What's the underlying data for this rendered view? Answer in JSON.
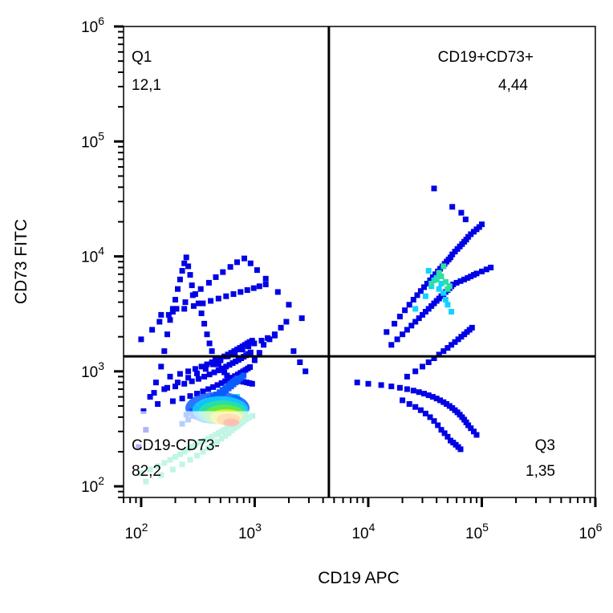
{
  "chart_data": {
    "type": "scatter",
    "xlabel": "CD19 APC",
    "ylabel": "CD73 FITC",
    "x_scale": "log",
    "y_scale": "log",
    "xlim": [
      70,
      1000000
    ],
    "ylim": [
      80,
      1000000
    ],
    "x_ticks": [
      {
        "value": 100,
        "base": "10",
        "exp": "2"
      },
      {
        "value": 1000,
        "base": "10",
        "exp": "3"
      },
      {
        "value": 10000,
        "base": "10",
        "exp": "4"
      },
      {
        "value": 100000,
        "base": "10",
        "exp": "5"
      },
      {
        "value": 1000000,
        "base": "10",
        "exp": "6"
      }
    ],
    "y_ticks": [
      {
        "value": 100,
        "base": "10",
        "exp": "2"
      },
      {
        "value": 1000,
        "base": "10",
        "exp": "3"
      },
      {
        "value": 10000,
        "base": "10",
        "exp": "4"
      },
      {
        "value": 100000,
        "base": "10",
        "exp": "5"
      },
      {
        "value": 1000000,
        "base": "10",
        "exp": "6"
      }
    ],
    "quadrant_gate": {
      "x": 4500,
      "y": 1350
    },
    "quadrants": [
      {
        "name": "Q1",
        "value": "12,1",
        "position": "top-left"
      },
      {
        "name": "CD19+CD73+",
        "value": "4,44",
        "position": "top-right"
      },
      {
        "name": "CD19-CD73-",
        "value": "82,2",
        "position": "bottom-left"
      },
      {
        "name": "Q3",
        "value": "1,35",
        "position": "bottom-right"
      }
    ],
    "density_colors": [
      "#0000e6",
      "#0a5cff",
      "#12d2ff",
      "#2ee0a0",
      "#66ee33",
      "#f4e81a",
      "#ff8800",
      "#ff1a00"
    ],
    "populations": [
      {
        "x": [
          95,
          110,
          105,
          120,
          135,
          150,
          160,
          170,
          180,
          190,
          200,
          210,
          220,
          230,
          240,
          250,
          260,
          270,
          280,
          300,
          320,
          340,
          360,
          380,
          400,
          420,
          450,
          480,
          510,
          540,
          570,
          600,
          640,
          680,
          720,
          760,
          800,
          850,
          900,
          950,
          1000,
          1100,
          1200,
          1350,
          1500,
          1700,
          1900,
          2200,
          2500,
          2800,
          130,
          170,
          210,
          260,
          310,
          370,
          430,
          500,
          580,
          670,
          780,
          880,
          990,
          1150,
          1300,
          1500,
          150,
          190,
          240,
          290,
          350,
          410,
          480,
          560,
          650,
          750,
          860,
          980,
          1100,
          1250,
          100,
          125,
          145,
          175,
          205,
          245,
          285,
          335,
          395,
          455,
          525,
          610,
          700,
          810,
          920,
          1050,
          1250,
          1600,
          2000,
          2600
        ],
        "y": [
          220,
          310,
          450,
          600,
          800,
          1100,
          1500,
          2100,
          2800,
          3500,
          4200,
          5200,
          6300,
          7500,
          8700,
          9800,
          8200,
          6900,
          5600,
          4700,
          3900,
          3200,
          2600,
          2100,
          1750,
          1500,
          1300,
          1150,
          1050,
          980,
          920,
          880,
          860,
          840,
          830,
          820,
          810,
          800,
          790,
          780,
          1250,
          1450,
          1700,
          1900,
          2100,
          2400,
          2700,
          1500,
          1200,
          1000,
          650,
          720,
          800,
          880,
          960,
          1050,
          1150,
          1250,
          1350,
          1450,
          1550,
          1650,
          1750,
          1850,
          1950,
          2050,
          3100,
          3300,
          3500,
          3700,
          3900,
          4100,
          4300,
          4500,
          4700,
          4900,
          5100,
          5300,
          5500,
          5700,
          1900,
          2300,
          2700,
          3100,
          3500,
          4000,
          4600,
          5200,
          5900,
          6600,
          7300,
          8100,
          8900,
          9600,
          8700,
          7600,
          6400,
          4900,
          3800,
          2900
        ]
      },
      {
        "x": [
          180,
          220,
          260,
          300,
          340,
          380,
          420,
          460,
          500,
          540,
          580,
          620,
          660,
          700,
          740,
          780,
          820,
          860,
          900,
          950,
          160,
          200,
          240,
          280,
          320,
          360,
          400,
          440,
          480,
          520,
          560,
          600,
          640,
          680,
          720,
          760,
          800,
          840,
          880,
          920,
          140,
          190,
          230,
          270,
          310,
          350,
          390,
          430,
          470,
          510,
          550,
          590,
          630,
          670,
          710,
          750,
          790,
          830,
          870,
          910
        ],
        "y": [
          900,
          950,
          1000,
          1050,
          1100,
          1150,
          1200,
          1250,
          1300,
          1350,
          1400,
          1450,
          1500,
          1550,
          1600,
          1650,
          1700,
          1750,
          1800,
          1850,
          700,
          740,
          780,
          820,
          860,
          900,
          940,
          980,
          1020,
          1060,
          1100,
          1140,
          1180,
          1220,
          1260,
          1300,
          1340,
          1380,
          1420,
          1460,
          520,
          550,
          580,
          610,
          640,
          670,
          700,
          730,
          760,
          790,
          820,
          850,
          880,
          910,
          940,
          970,
          1000,
          1030,
          1060,
          1090
        ]
      },
      {
        "x": [
          230,
          260,
          290,
          320,
          350,
          380,
          410,
          440,
          470,
          500,
          530,
          560,
          590,
          620,
          650,
          680,
          710,
          740,
          770,
          800,
          250,
          280,
          310,
          340,
          370,
          400,
          430,
          460,
          490,
          520,
          550,
          580,
          610,
          640,
          670,
          700
        ],
        "y": [
          350,
          380,
          410,
          440,
          470,
          500,
          530,
          560,
          590,
          620,
          650,
          680,
          710,
          740,
          770,
          800,
          830,
          860,
          890,
          920,
          420,
          450,
          480,
          510,
          540,
          570,
          600,
          630,
          660,
          690,
          720,
          750,
          780,
          810,
          840,
          870
        ]
      },
      {
        "x": [
          330,
          380,
          420,
          460,
          500,
          540,
          580,
          620,
          660,
          700,
          360,
          400,
          440,
          480,
          520,
          560,
          600,
          640,
          680,
          720
        ],
        "y": [
          420,
          440,
          460,
          480,
          500,
          520,
          540,
          560,
          580,
          600,
          380,
          400,
          420,
          440,
          460,
          480,
          500,
          520,
          540,
          560
        ]
      },
      {
        "x": [
          100,
          120,
          140,
          160,
          180,
          200,
          220,
          240,
          260,
          280,
          300,
          330,
          360,
          390,
          420,
          450,
          480,
          510,
          540,
          570,
          600,
          640,
          680,
          720,
          760,
          800,
          850,
          900,
          950,
          110,
          150,
          190,
          230,
          270,
          310,
          350,
          390,
          430,
          470,
          510,
          550,
          590,
          630,
          670,
          710,
          750,
          790,
          830,
          870
        ],
        "y": [
          130,
          140,
          150,
          160,
          170,
          180,
          190,
          200,
          210,
          220,
          230,
          240,
          250,
          260,
          270,
          280,
          290,
          300,
          310,
          320,
          330,
          340,
          350,
          360,
          370,
          380,
          390,
          400,
          410,
          110,
          125,
          140,
          155,
          170,
          185,
          200,
          215,
          230,
          245,
          260,
          275,
          290,
          305,
          320,
          335,
          350,
          365,
          380,
          395
        ]
      },
      {
        "x": [
          14500,
          17000,
          19000,
          21000,
          23000,
          25000,
          27000,
          29000,
          31000,
          33000,
          35000,
          37000,
          39000,
          41000,
          43000,
          45000,
          47000,
          49000,
          51000,
          53000,
          55000,
          58000,
          61000,
          64000,
          67000,
          70000,
          73000,
          76000,
          80000,
          85000,
          90000,
          95000,
          100000,
          16000,
          18000,
          20000,
          22000,
          24000,
          26000,
          28000,
          30000,
          32000,
          34000,
          36000,
          38000,
          40000,
          42000,
          44000,
          46000,
          48000,
          50000,
          52000,
          54000,
          56000,
          60000,
          65000,
          70000,
          75000,
          80000,
          85000,
          90000,
          100000,
          110000,
          120000,
          38000,
          55000,
          66000,
          72000,
          22000,
          26000,
          30000,
          34000,
          38000,
          42000,
          46000,
          50000,
          54000,
          58000,
          62000,
          66000,
          70000,
          74000,
          78000,
          82000
        ],
        "y": [
          2200,
          2600,
          3000,
          3400,
          3800,
          4200,
          4600,
          5000,
          5400,
          5800,
          6200,
          6600,
          7000,
          7400,
          7800,
          8200,
          8600,
          9000,
          9400,
          9800,
          10400,
          11000,
          11600,
          12200,
          12800,
          13400,
          14000,
          14800,
          15600,
          16400,
          17200,
          18000,
          19000,
          1700,
          1900,
          2100,
          2300,
          2500,
          2700,
          2900,
          3100,
          3300,
          3500,
          3700,
          3900,
          4100,
          4300,
          4500,
          4700,
          4900,
          5100,
          5300,
          5500,
          5700,
          5900,
          6100,
          6300,
          6500,
          6700,
          6900,
          7100,
          7400,
          7700,
          8000,
          39000,
          27000,
          24000,
          21000,
          900,
          1000,
          1100,
          1200,
          1300,
          1400,
          1500,
          1600,
          1700,
          1800,
          1900,
          2000,
          2100,
          2200,
          2300,
          2400
        ]
      },
      {
        "x": [
          8000,
          10000,
          13000,
          16000,
          19000,
          22000,
          25000,
          28000,
          31000,
          34000,
          37000,
          40000,
          43000,
          46000,
          49000,
          52000,
          55000,
          58000,
          61000,
          64000,
          67000,
          70000,
          73000,
          76000,
          80000,
          85000,
          90000,
          20000,
          23000,
          26000,
          29000,
          32000,
          35000,
          38000,
          41000,
          44000,
          47000,
          50000,
          53000,
          56000,
          59000,
          62000,
          65000
        ],
        "y": [
          800,
          780,
          760,
          740,
          720,
          700,
          680,
          660,
          640,
          620,
          600,
          580,
          560,
          540,
          520,
          500,
          480,
          460,
          440,
          420,
          400,
          380,
          360,
          340,
          320,
          300,
          280,
          560,
          520,
          490,
          460,
          430,
          400,
          370,
          340,
          310,
          290,
          270,
          250,
          240,
          230,
          220,
          210
        ]
      },
      {
        "x": [
          26000,
          32000,
          36000,
          40000,
          44000,
          48000,
          34000,
          38000,
          42000,
          46000,
          50000,
          54000
        ],
        "y": [
          3500,
          4500,
          5500,
          6500,
          5800,
          4200,
          7500,
          6200,
          5200,
          4800,
          3800,
          3300
        ]
      },
      {
        "x": [
          36000,
          40000,
          44000,
          48000,
          52000,
          42000,
          46000,
          50000
        ],
        "y": [
          5800,
          6300,
          6700,
          6000,
          5500,
          7200,
          8200,
          5200
        ]
      }
    ],
    "population_density_levels": [
      0,
      0,
      1,
      2,
      3,
      0,
      0,
      2,
      3
    ]
  }
}
